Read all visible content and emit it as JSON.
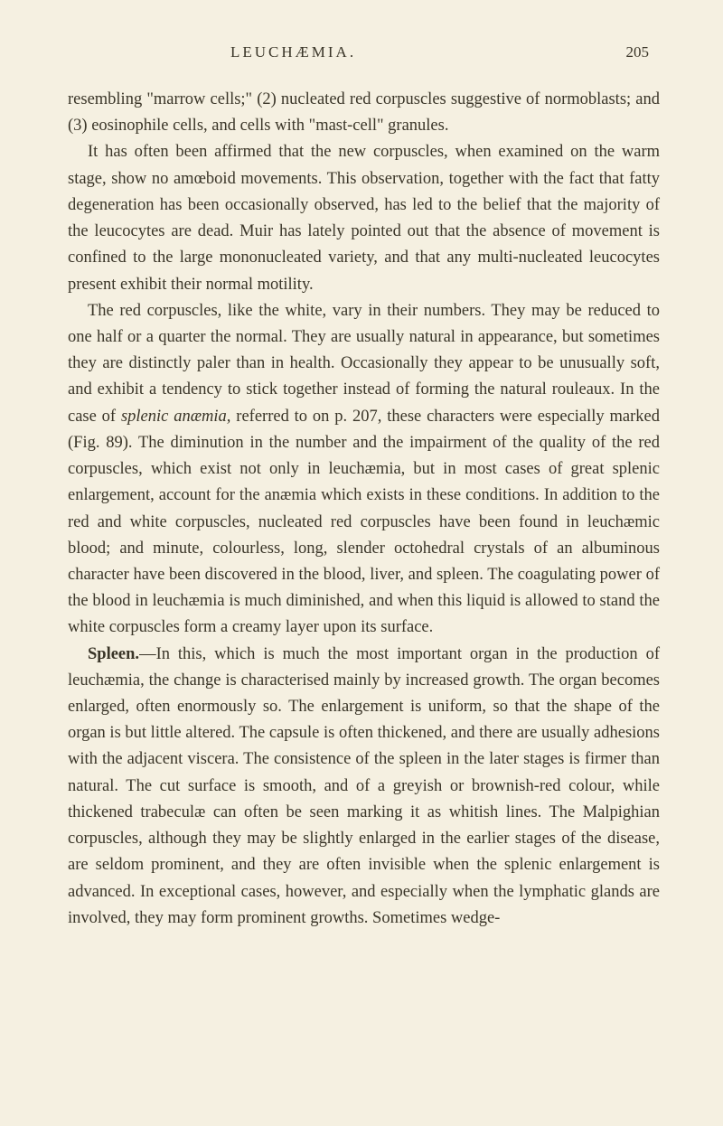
{
  "header": {
    "title": "LEUCHÆMIA.",
    "pageNumber": "205"
  },
  "paragraphs": {
    "p1": "resembling \"marrow cells;\" (2) nucleated red corpuscles suggestive of normoblasts; and (3) eosinophile cells, and cells with \"mast-cell\" granules.",
    "p2": "It has often been affirmed that the new corpuscles, when examined on the warm stage, show no amœboid movements. This observation, together with the fact that fatty degeneration has been occasionally observed, has led to the belief that the majority of the leucocytes are dead. Muir has lately pointed out that the absence of movement is confined to the large mononucleated variety, and that any multi-nucleated leucocytes present exhibit their normal motility.",
    "p3_part1": "The red corpuscles, like the white, vary in their numbers. They may be reduced to one half or a quarter the normal. They are usually natural in appearance, but sometimes they are distinctly paler than in health. Occasionally they appear to be unusually soft, and exhibit a tendency to stick together instead of forming the natural rouleaux. In the case of ",
    "p3_italic": "splenic anæmia,",
    "p3_part2": " referred to on p. 207, these characters were especially marked (Fig. 89). The diminution in the number and the impairment of the quality of the red corpuscles, which exist not only in leuchæmia, but in most cases of great splenic enlargement, account for the anæmia which exists in these conditions. In addition to the red and white corpuscles, nucleated red corpuscles have been found in leuchæmic blood; and minute, colourless, long, slender octohedral crystals of an albuminous character have been discovered in the blood, liver, and spleen. The coagulating power of the blood in leuchæmia is much diminished, and when this liquid is allowed to stand the white corpuscles form a creamy layer upon its surface.",
    "p4_bold": "Spleen.",
    "p4_text": "—In this, which is much the most important organ in the production of leuchæmia, the change is characterised mainly by increased growth. The organ becomes enlarged, often enormously so. The enlargement is uniform, so that the shape of the organ is but little altered. The capsule is often thickened, and there are usually adhesions with the adjacent viscera. The consistence of the spleen in the later stages is firmer than natural. The cut surface is smooth, and of a greyish or brownish-red colour, while thickened trabeculæ can often be seen marking it as whitish lines. The Malpighian corpuscles, although they may be slightly enlarged in the earlier stages of the disease, are seldom prominent, and they are often invisible when the splenic enlargement is advanced. In exceptional cases, however, and especially when the lymphatic glands are involved, they may form prominent growths. Sometimes wedge-"
  },
  "styling": {
    "backgroundColor": "#f5f0e1",
    "textColor": "#3a3528",
    "bodyFontSize": 18.5,
    "lineHeight": 1.58,
    "headerFontSize": 17,
    "fontFamily": "Georgia, Times New Roman, serif"
  }
}
